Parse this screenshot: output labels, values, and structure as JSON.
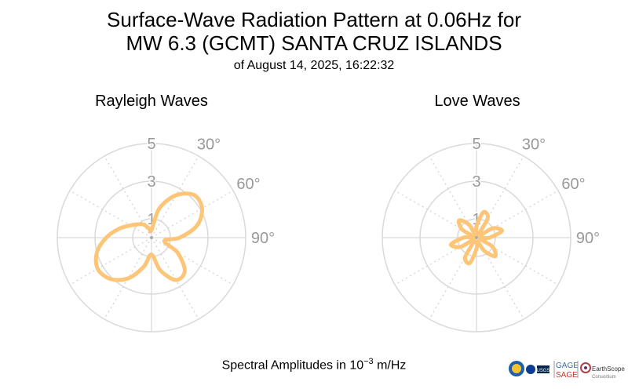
{
  "title_line1": "Surface-Wave Radiation Pattern at 0.06Hz for",
  "title_line2": "MW 6.3 (GCMT) SANTA CRUZ ISLANDS",
  "subtitle": "of August 14, 2025, 16:22:32",
  "footer": {
    "prefix": "Spectral Amplitudes in 10",
    "exponent": "−3",
    "suffix": " m/Hz"
  },
  "logos": {
    "gage": "GAGE",
    "sage": "SAGE",
    "earthscope": "EarthScope",
    "consortium": "Consortium",
    "usgs": "USGS"
  },
  "colors": {
    "pattern": "#fcc577",
    "grid": "#d9d9d9",
    "tick": "#999999"
  },
  "chart_data": [
    {
      "type": "polar",
      "title": "Rayleigh Waves",
      "radial_ticks": [
        "1",
        "3",
        "5"
      ],
      "radial_max": 5,
      "angle_labels": [
        "30°",
        "60°",
        "90°"
      ],
      "azimuth_deg": [
        0,
        15,
        30,
        45,
        60,
        75,
        90,
        105,
        120,
        135,
        150,
        165,
        180,
        195,
        210,
        225,
        240,
        255,
        270,
        285,
        300,
        315,
        330,
        345
      ],
      "amplitude": [
        0.4,
        1.6,
        2.6,
        3.2,
        3.1,
        2.5,
        1.5,
        0.7,
        1.6,
        2.5,
        2.6,
        1.8,
        0.9,
        1.6,
        2.5,
        3.1,
        3.3,
        3.0,
        2.4,
        1.8,
        1.3,
        1.0,
        0.8,
        0.5
      ]
    },
    {
      "type": "polar",
      "title": "Love Waves",
      "radial_ticks": [
        "1",
        "3",
        "5"
      ],
      "radial_max": 5,
      "angle_labels": [
        "30°",
        "60°",
        "90°"
      ],
      "azimuth_deg": [
        0,
        15,
        30,
        45,
        60,
        75,
        90,
        105,
        120,
        135,
        150,
        165,
        180,
        195,
        210,
        225,
        240,
        255,
        270,
        285,
        300,
        315,
        330,
        345
      ],
      "amplitude": [
        0.6,
        1.4,
        1.2,
        0.2,
        1.0,
        1.4,
        0.7,
        0.2,
        1.0,
        1.4,
        0.8,
        0.2,
        0.6,
        1.4,
        1.2,
        0.2,
        1.0,
        1.4,
        0.7,
        0.2,
        0.9,
        1.3,
        0.8,
        0.1
      ]
    }
  ]
}
